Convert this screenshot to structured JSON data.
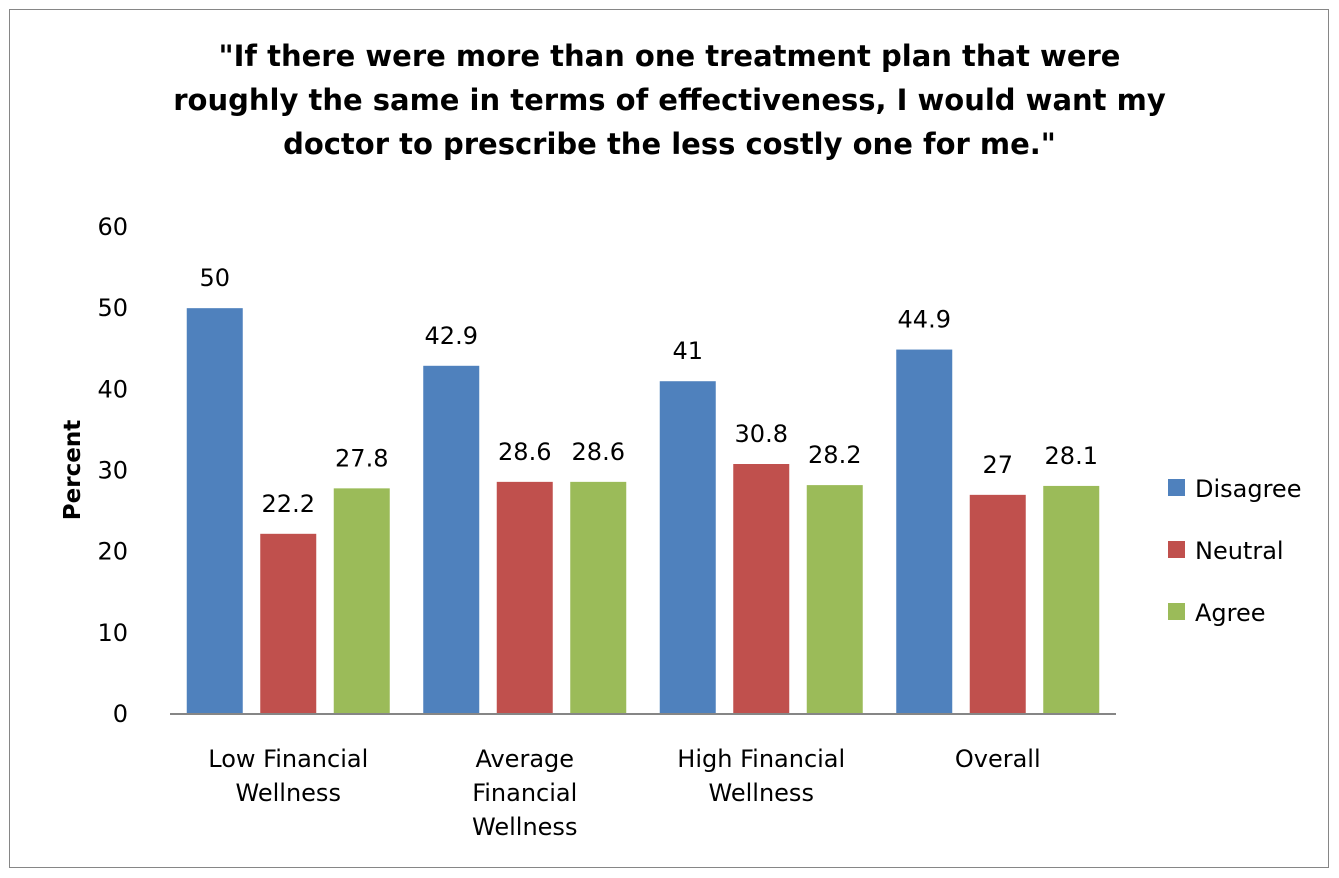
{
  "chart_data": {
    "type": "bar",
    "title_lines": [
      "\"If there were more than one treatment plan that were",
      "roughly the same in terms of effectiveness, I would want my",
      "doctor to prescribe the less costly one for me.\""
    ],
    "xlabel": "",
    "ylabel": "Percent",
    "ylim": [
      0,
      60
    ],
    "yticks": [
      0,
      10,
      20,
      30,
      40,
      50,
      60
    ],
    "grid": false,
    "legend_position": "right",
    "categories": [
      [
        "Low Financial",
        "Wellness"
      ],
      [
        "Average",
        "Financial",
        "Wellness"
      ],
      [
        "High Financial",
        "Wellness"
      ],
      [
        "Overall"
      ]
    ],
    "series": [
      {
        "name": "Disagree",
        "color": "#4F81BD",
        "values": [
          50,
          42.9,
          41,
          44.9
        ]
      },
      {
        "name": "Neutral",
        "color": "#C0504D",
        "values": [
          22.2,
          28.6,
          30.8,
          27
        ]
      },
      {
        "name": "Agree",
        "color": "#9BBB59",
        "values": [
          27.8,
          28.6,
          28.2,
          28.1
        ]
      }
    ]
  }
}
